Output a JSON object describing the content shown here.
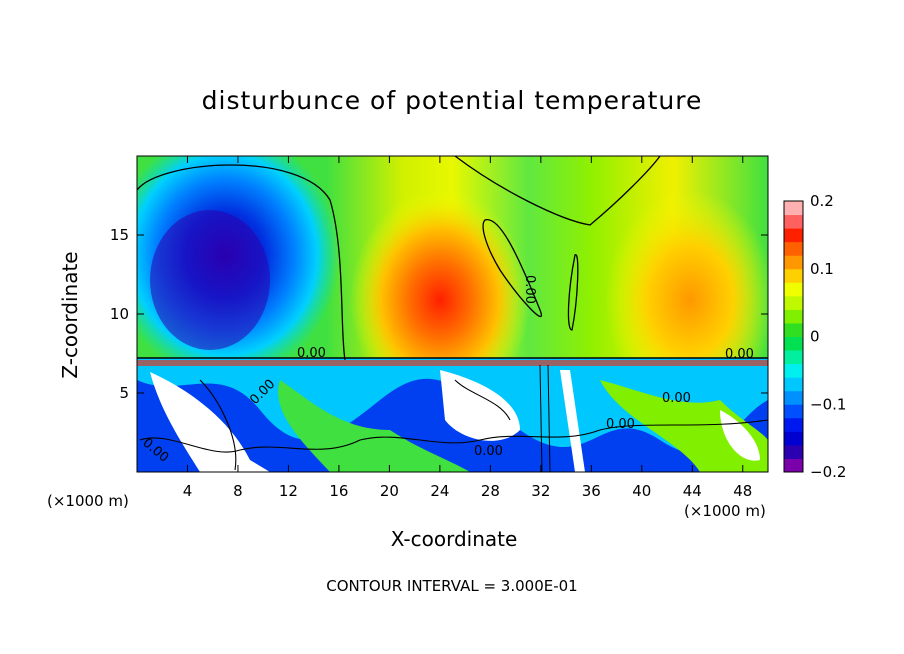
{
  "chart_data": {
    "type": "heatmap",
    "title": "disturbunce of potential temperature",
    "xlabel": "X-coordinate",
    "ylabel": "Z-coordinate",
    "x_unit": "(×1000 m)",
    "x_unit_right": "(×1000 m)",
    "footer": "CONTOUR INTERVAL = 3.000E-01",
    "xlim": [
      0,
      50
    ],
    "ylim": [
      0,
      20
    ],
    "x_ticks": [
      4,
      8,
      12,
      16,
      20,
      24,
      28,
      32,
      36,
      40,
      44,
      48
    ],
    "y_ticks": [
      5,
      10,
      15
    ],
    "contour_labels": [
      "0.00",
      "0.00",
      "0.00",
      "0.00",
      "0.00",
      "0.00",
      "0.00",
      "0.00"
    ],
    "colorbar": {
      "min": -0.2,
      "max": 0.2,
      "tick_values": [
        0.2,
        0.1,
        0,
        -0.1,
        -0.2
      ],
      "tick_labels": [
        "0.2",
        "0.1",
        "0",
        "−0.1",
        "−0.2"
      ],
      "colors": [
        "#7a00aa",
        "#2a00b0",
        "#0000d0",
        "#0018f0",
        "#0050ff",
        "#0090ff",
        "#00c8ff",
        "#00f0f0",
        "#00f0a0",
        "#00e050",
        "#30e020",
        "#80f000",
        "#c0f800",
        "#f0ff00",
        "#ffd000",
        "#ff9800",
        "#ff6000",
        "#ff2000",
        "#ff6060",
        "#ffb0b0"
      ]
    },
    "fields": {
      "upper_left": "negative",
      "upper_center": "positive",
      "upper_right": "positive",
      "lower_band": "mixed"
    }
  }
}
